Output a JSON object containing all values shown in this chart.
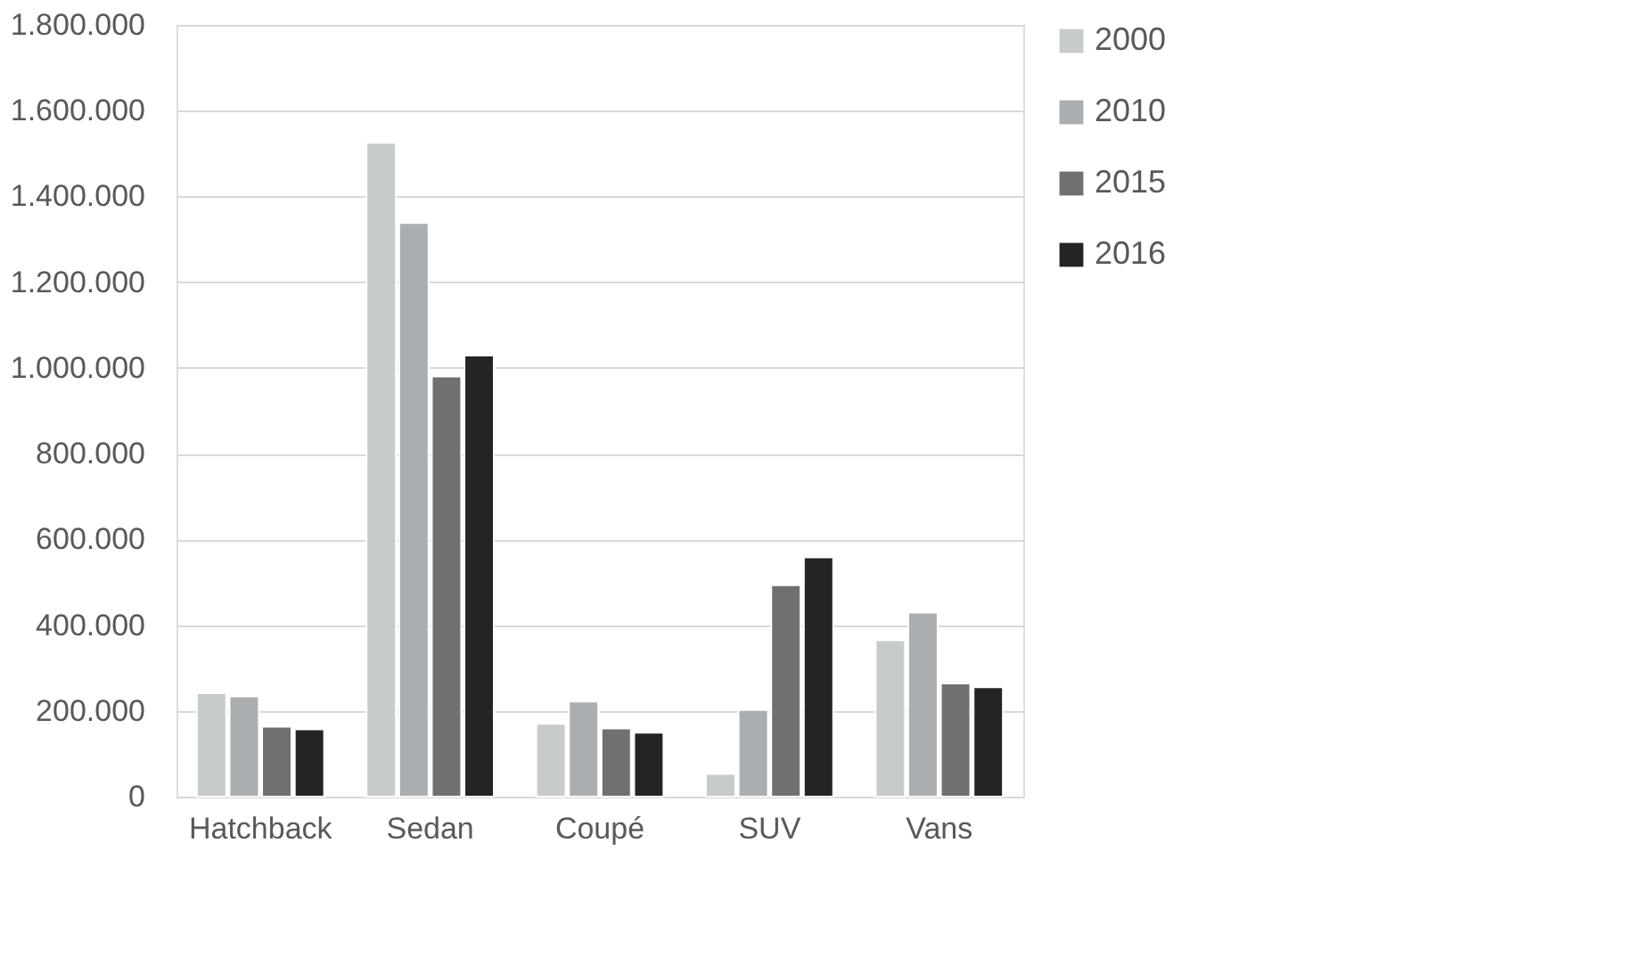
{
  "chart_data": {
    "type": "bar",
    "categories": [
      "Hatchback",
      "Sedan",
      "Coupé",
      "SUV",
      "Vans"
    ],
    "series": [
      {
        "name": "2000",
        "color": "#c8cbcb",
        "values": [
          241000,
          1525000,
          170000,
          53000,
          365000
        ]
      },
      {
        "name": "2010",
        "color": "#abaeb0",
        "values": [
          234000,
          1338000,
          222000,
          202000,
          429000
        ]
      },
      {
        "name": "2015",
        "color": "#6f7072",
        "values": [
          163000,
          980000,
          159000,
          493000,
          264000
        ]
      },
      {
        "name": "2016",
        "color": "#242424",
        "values": [
          157000,
          1029000,
          149000,
          558000,
          255000
        ]
      }
    ],
    "ylim": [
      0,
      1800000
    ],
    "yticks": [
      0,
      {
        "value": 200000,
        "label": "200.000"
      },
      {
        "value": 400000,
        "label": "400.000"
      },
      {
        "value": 600000,
        "label": "600.000"
      },
      {
        "value": 800000,
        "label": "800.000"
      },
      {
        "value": 1000000,
        "label": "1.000.000"
      },
      {
        "value": 1200000,
        "label": "1.200.000"
      },
      {
        "value": 1400000,
        "label": "1.400.000"
      },
      {
        "value": 1600000,
        "label": "1.600.000"
      },
      {
        "value": 1800000,
        "label": "1.800.000"
      }
    ],
    "grid": "y",
    "legend": "right"
  }
}
